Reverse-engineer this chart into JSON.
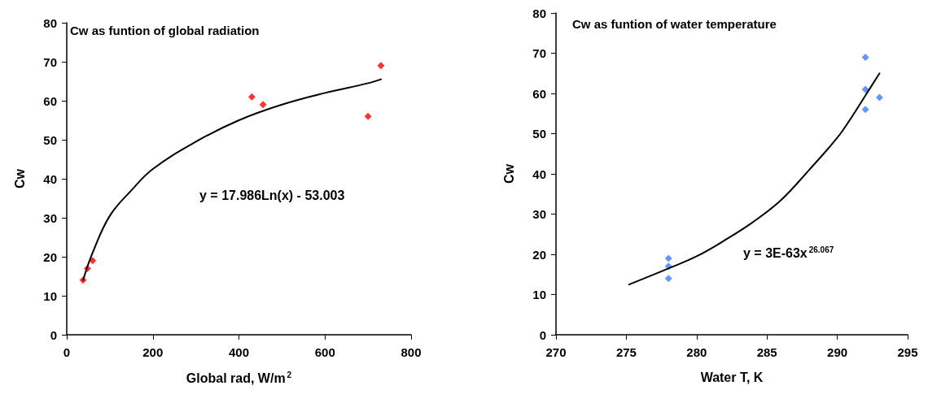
{
  "chart_data": [
    {
      "type": "scatter",
      "title": "Cw as funtion of global radiation",
      "xlabel": "Global rad, W/m$^{2}$",
      "ylabel": "Cw",
      "marker": "diamond",
      "grid": false,
      "xlim": [
        0,
        800
      ],
      "xticks": [
        0,
        200,
        400,
        600,
        800
      ],
      "ylim": [
        0,
        80
      ],
      "yticks": [
        0,
        10,
        20,
        30,
        40,
        50,
        60,
        70,
        80
      ],
      "annotations": [
        "y = 17.986Ln(x) - 53.003"
      ],
      "series": [
        {
          "color": "#ff0000",
          "x": [
            38,
            48,
            60,
            430,
            456,
            700,
            730
          ],
          "values": [
            14,
            17,
            19,
            61,
            59,
            56,
            69
          ]
        },
        {
          "type": "line",
          "color": "#000000",
          "marker": "none",
          "x": [
            38,
            60,
            100,
            150,
            200,
            300,
            400,
            500,
            600,
            700,
            730
          ],
          "values": [
            14,
            21,
            30.5,
            37,
            42.5,
            49.5,
            55,
            59,
            62,
            64.5,
            65.5
          ]
        }
      ]
    },
    {
      "type": "scatter",
      "title": "Cw as funtion of water temperature",
      "xlabel": "Water T, K",
      "ylabel": "Cw",
      "marker": "diamond",
      "grid": false,
      "xlim": [
        270,
        295
      ],
      "xticks": [
        270,
        275,
        280,
        285,
        290,
        295
      ],
      "ylim": [
        0,
        80
      ],
      "yticks": [
        0,
        10,
        20,
        30,
        40,
        50,
        60,
        70,
        80
      ],
      "annotations": [
        "y = 3E-63x$^{26.067}$"
      ],
      "series": [
        {
          "color": "#3b7bff",
          "x": [
            278,
            278,
            278,
            292,
            292,
            292,
            293
          ],
          "values": [
            19,
            17,
            14,
            69,
            61,
            56,
            59
          ]
        },
        {
          "type": "line",
          "color": "#000000",
          "marker": "none",
          "x": [
            275.2,
            278,
            280,
            282,
            284,
            286,
            288,
            290,
            291,
            292,
            293
          ],
          "values": [
            12.5,
            16.5,
            19.5,
            23.5,
            28,
            33.5,
            41,
            49,
            54,
            59.5,
            65
          ]
        }
      ]
    }
  ]
}
